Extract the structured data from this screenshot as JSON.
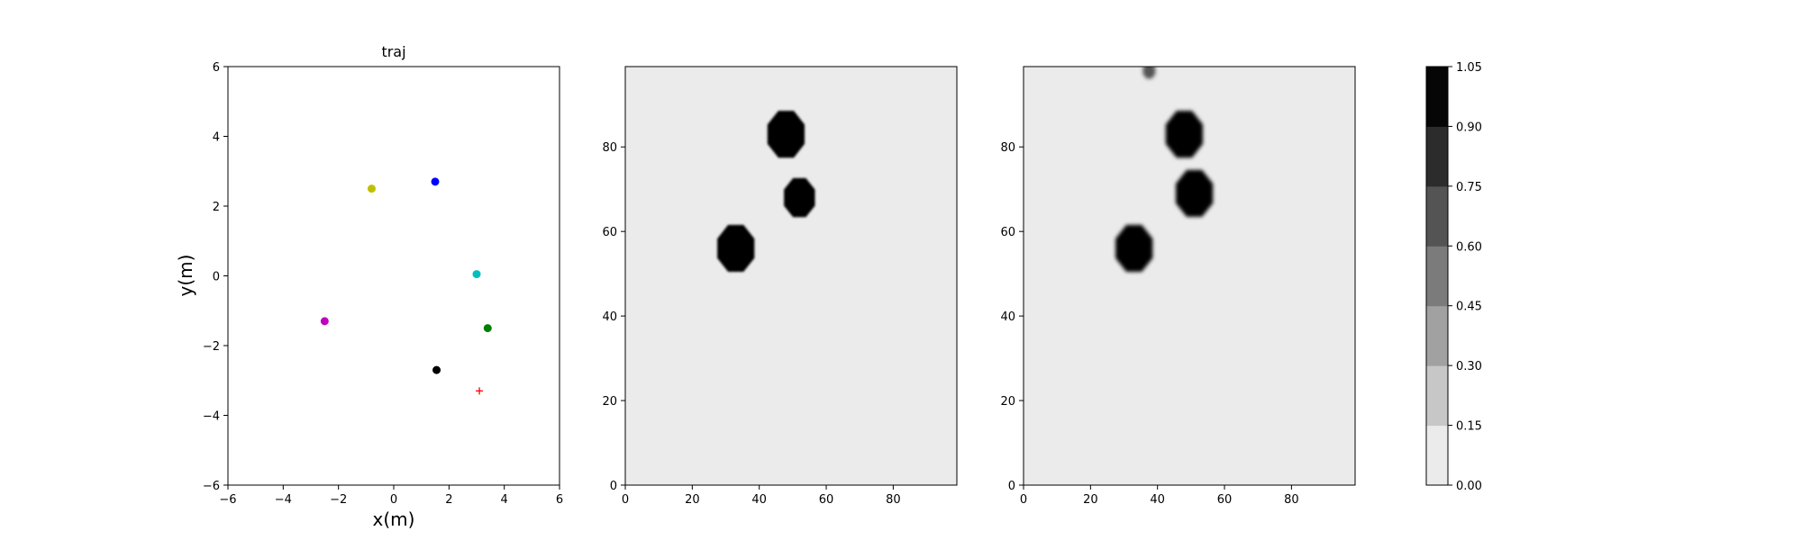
{
  "chart_data": [
    {
      "type": "scatter",
      "title": "traj",
      "xlabel": "x(m)",
      "ylabel": "y(m)",
      "xlim": [
        -6,
        6
      ],
      "ylim": [
        -6,
        6
      ],
      "xticks": [
        -6,
        -4,
        -2,
        0,
        2,
        4,
        6
      ],
      "yticks": [
        -6,
        -4,
        -2,
        0,
        2,
        4,
        6
      ],
      "points": [
        {
          "name": "yellow",
          "x": -0.8,
          "y": 2.5,
          "color": "#bfbf00",
          "marker": "o"
        },
        {
          "name": "blue",
          "x": 1.5,
          "y": 2.7,
          "color": "#0000ff",
          "marker": "o"
        },
        {
          "name": "cyan",
          "x": 3.0,
          "y": 0.05,
          "color": "#00bfbf",
          "marker": "o"
        },
        {
          "name": "magenta",
          "x": -2.5,
          "y": -1.3,
          "color": "#bf00bf",
          "marker": "o"
        },
        {
          "name": "green",
          "x": 3.4,
          "y": -1.5,
          "color": "#008000",
          "marker": "o"
        },
        {
          "name": "black",
          "x": 1.55,
          "y": -2.7,
          "color": "#000000",
          "marker": "o"
        },
        {
          "name": "red-target",
          "x": 3.1,
          "y": -3.3,
          "color": "#ff0000",
          "marker": "+"
        }
      ]
    },
    {
      "type": "heatmap",
      "xlim": [
        0,
        99
      ],
      "ylim": [
        0,
        99
      ],
      "xticks": [
        0,
        20,
        40,
        60,
        80
      ],
      "yticks": [
        0,
        20,
        40,
        60,
        80
      ],
      "background_level": 0.0,
      "blobs": [
        {
          "cx": 48,
          "cy": 83,
          "r": 6,
          "level": 1.0
        },
        {
          "cx": 52,
          "cy": 68,
          "r": 5,
          "level": 1.0
        },
        {
          "cx": 33,
          "cy": 56,
          "r": 6,
          "level": 1.0
        }
      ]
    },
    {
      "type": "heatmap",
      "xlim": [
        0,
        99
      ],
      "ylim": [
        0,
        99
      ],
      "xticks": [
        0,
        20,
        40,
        60,
        80
      ],
      "yticks": [
        0,
        20,
        40,
        60,
        80
      ],
      "background_level": 0.0,
      "blobs": [
        {
          "cx": 37.5,
          "cy": 98,
          "r": 2,
          "level": 0.6
        },
        {
          "cx": 48,
          "cy": 83,
          "r": 6,
          "level": 1.0
        },
        {
          "cx": 51,
          "cy": 69,
          "r": 6,
          "level": 1.0
        },
        {
          "cx": 33,
          "cy": 56,
          "r": 6,
          "level": 1.0
        }
      ]
    },
    {
      "type": "colorbar",
      "levels": [
        "0.00",
        "0.15",
        "0.30",
        "0.45",
        "0.60",
        "0.75",
        "0.90",
        "1.05"
      ],
      "colors": [
        "#ebebeb",
        "#c7c7c7",
        "#a1a1a1",
        "#7b7b7b",
        "#545454",
        "#2c2c2c",
        "#060606"
      ]
    }
  ]
}
